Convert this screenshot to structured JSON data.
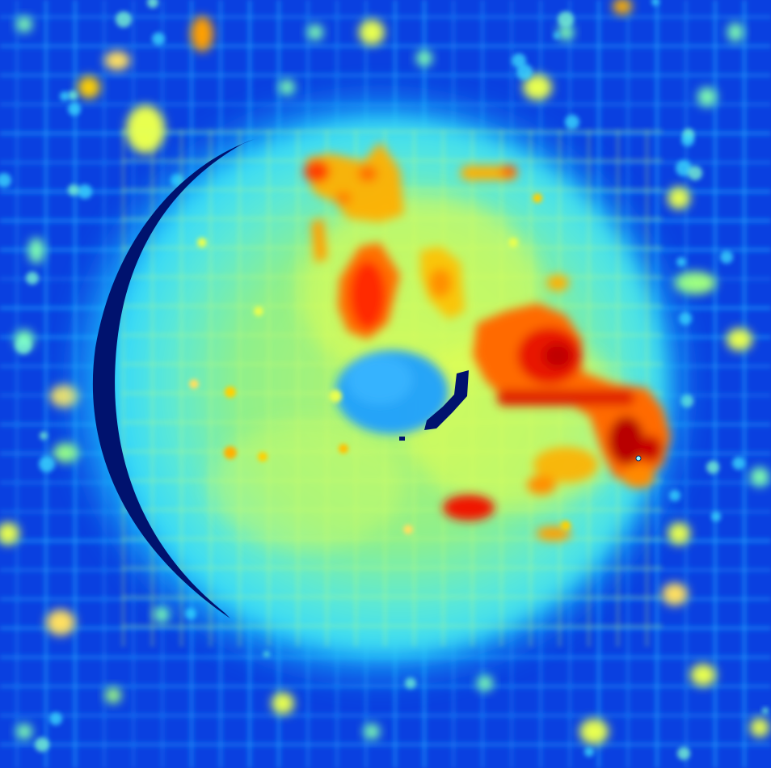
{
  "image": {
    "kind": "heatmap-scan",
    "colormap": [
      "#000080",
      "#0a40e0",
      "#1e90ff",
      "#00d0ff",
      "#7fffb0",
      "#e8ff50",
      "#ffa000",
      "#ff3000",
      "#b00000"
    ],
    "colors": {
      "background_blue": "#0a40e0",
      "grid_cyan": "#1ea8ff",
      "disc_cyan": "#46e6ff",
      "disc_green": "#9ef07a",
      "hot_orange": "#ff8a00",
      "hot_red": "#e01000",
      "deep_red": "#a00000",
      "shadow_navy": "#00106a",
      "cool_spot": "#1e9cff"
    }
  }
}
